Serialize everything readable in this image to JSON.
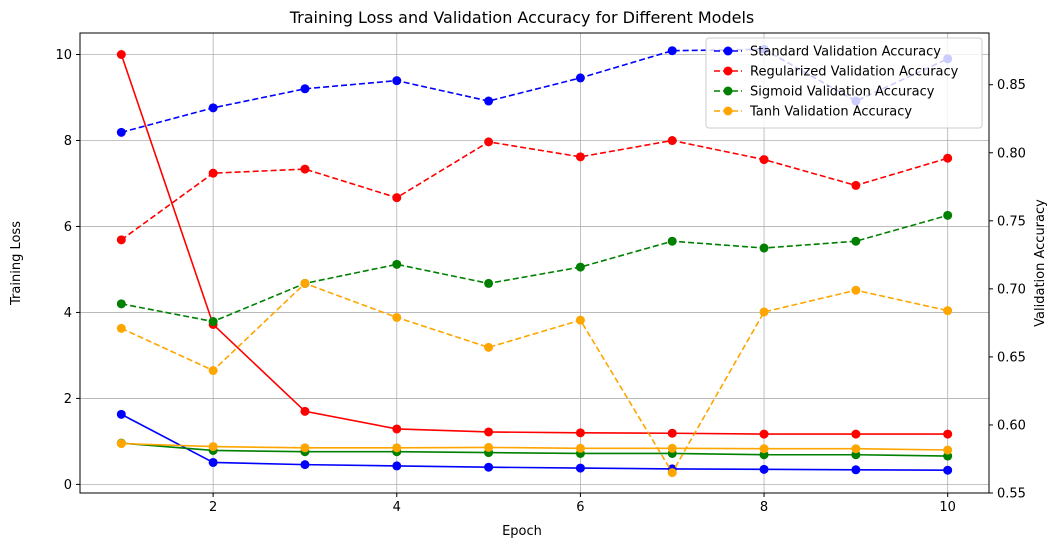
{
  "chart_data": {
    "type": "line",
    "title": "Training Loss and Validation Accuracy for Different Models",
    "xlabel": "Epoch",
    "ylabel_left": "Training Loss",
    "ylabel_right": "Validation Accuracy",
    "x": [
      1,
      2,
      3,
      4,
      5,
      6,
      7,
      8,
      9,
      10
    ],
    "xlim": [
      0.55,
      10.45
    ],
    "ylim_left": [
      -0.2,
      10.5
    ],
    "ylim_right": [
      0.55,
      0.888
    ],
    "x_ticks": [
      2,
      4,
      6,
      8,
      10
    ],
    "y_ticks_left": [
      0,
      2,
      4,
      6,
      8,
      10
    ],
    "y_ticks_right": [
      0.55,
      0.6,
      0.65,
      0.7,
      0.75,
      0.8,
      0.85
    ],
    "x_tick_labels": [
      "2",
      "4",
      "6",
      "8",
      "10"
    ],
    "y_tick_labels_left": [
      "0",
      "2",
      "4",
      "6",
      "8",
      "10"
    ],
    "y_tick_labels_right": [
      "0.55",
      "0.60",
      "0.65",
      "0.70",
      "0.75",
      "0.80",
      "0.85"
    ],
    "grid": true,
    "legend_position": "top-right",
    "loss_series": [
      {
        "color": "#0000ff",
        "values": [
          1.63,
          0.51,
          0.46,
          0.43,
          0.4,
          0.38,
          0.36,
          0.35,
          0.34,
          0.33
        ]
      },
      {
        "color": "#ff0000",
        "values": [
          10.0,
          3.72,
          1.7,
          1.29,
          1.22,
          1.2,
          1.19,
          1.17,
          1.17,
          1.17
        ]
      },
      {
        "color": "#008000",
        "values": [
          0.96,
          0.79,
          0.76,
          0.76,
          0.74,
          0.72,
          0.72,
          0.69,
          0.69,
          0.66
        ]
      },
      {
        "color": "#ffa500",
        "values": [
          0.95,
          0.88,
          0.85,
          0.85,
          0.86,
          0.84,
          0.84,
          0.83,
          0.83,
          0.8
        ]
      }
    ],
    "accuracy_series": [
      {
        "name": "Standard Validation Accuracy",
        "color": "#0000ff",
        "values": [
          0.815,
          0.833,
          0.847,
          0.853,
          0.838,
          0.855,
          0.875,
          0.876,
          0.838,
          0.869
        ]
      },
      {
        "name": "Regularized Validation Accuracy",
        "color": "#ff0000",
        "values": [
          0.736,
          0.785,
          0.788,
          0.767,
          0.808,
          0.797,
          0.809,
          0.795,
          0.776,
          0.796
        ]
      },
      {
        "name": "Sigmoid Validation Accuracy",
        "color": "#008000",
        "values": [
          0.689,
          0.676,
          0.704,
          0.718,
          0.704,
          0.716,
          0.735,
          0.73,
          0.735,
          0.754
        ]
      },
      {
        "name": "Tanh Validation Accuracy",
        "color": "#ffa500",
        "values": [
          0.671,
          0.64,
          0.704,
          0.679,
          0.657,
          0.677,
          0.565,
          0.683,
          0.699,
          0.684
        ]
      }
    ]
  }
}
